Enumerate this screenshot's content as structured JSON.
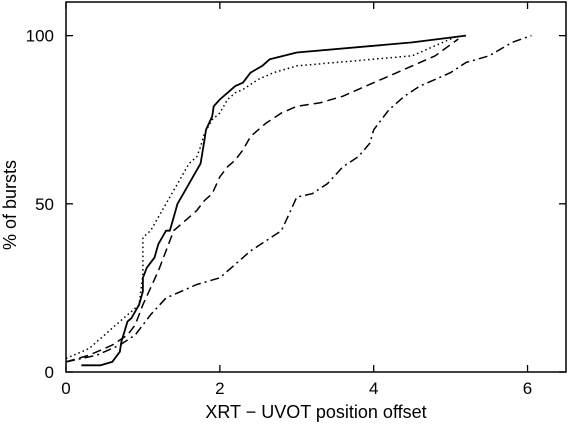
{
  "chart_data": {
    "type": "line",
    "title": "",
    "xlabel": "XRT − UVOT position offset",
    "ylabel": "% of bursts",
    "xlim": [
      0,
      6.5
    ],
    "ylim": [
      0,
      110
    ],
    "xticks": [
      0,
      2,
      4,
      6
    ],
    "xtick_labels": [
      "0",
      "2",
      "4",
      "6"
    ],
    "yticks": [
      0,
      50,
      100
    ],
    "ytick_labels": [
      "0",
      "50",
      "100"
    ],
    "grid": false,
    "legend": "none",
    "series": [
      {
        "style": "solid",
        "color": "#000000",
        "x": [
          0.2,
          0.45,
          0.6,
          0.7,
          0.72,
          0.8,
          0.85,
          0.95,
          1.0,
          1.0,
          1.05,
          1.15,
          1.2,
          1.3,
          1.35,
          1.4,
          1.45,
          1.55,
          1.65,
          1.75,
          1.8,
          1.82,
          1.9,
          1.92,
          2.0,
          2.1,
          2.2,
          2.3,
          2.4,
          2.55,
          2.65,
          3.0,
          4.5,
          5.2
        ],
        "y": [
          2,
          2,
          3,
          6,
          9,
          15,
          16,
          20,
          24,
          28,
          31,
          34,
          38,
          42,
          42,
          46,
          50,
          54,
          58,
          62,
          69,
          72,
          76,
          79,
          81,
          83,
          85,
          86,
          89,
          91,
          93,
          95,
          98,
          100
        ]
      },
      {
        "style": "dotted",
        "color": "#000000",
        "x": [
          0.0,
          0.3,
          0.5,
          0.7,
          0.85,
          0.95,
          1.0,
          1.0,
          1.1,
          1.2,
          1.3,
          1.4,
          1.5,
          1.6,
          1.7,
          1.75,
          1.8,
          1.9,
          2.0,
          2.05,
          2.1,
          2.2,
          2.3,
          2.5,
          2.7,
          3.0,
          3.5,
          4.0,
          4.5,
          5.1
        ],
        "y": [
          4,
          7,
          11,
          15,
          18,
          20,
          29,
          40,
          42,
          46,
          50,
          54,
          58,
          62,
          64,
          67,
          71,
          75,
          77,
          79,
          81,
          83,
          84,
          87,
          89,
          91,
          92,
          93,
          94,
          100
        ]
      },
      {
        "style": "dashed",
        "color": "#000000",
        "x": [
          0.0,
          0.3,
          0.6,
          0.8,
          0.9,
          1.0,
          1.1,
          1.2,
          1.3,
          1.4,
          1.5,
          1.6,
          1.7,
          1.8,
          1.9,
          2.0,
          2.1,
          2.2,
          2.3,
          2.4,
          2.6,
          2.8,
          3.0,
          3.3,
          3.6,
          4.0,
          4.4,
          4.8,
          5.1
        ],
        "y": [
          3,
          5,
          8,
          11,
          14,
          20,
          25,
          30,
          36,
          42,
          44,
          46,
          48,
          51,
          53,
          58,
          61,
          63,
          66,
          70,
          74,
          77,
          79,
          80,
          82,
          86,
          90,
          94,
          99
        ]
      },
      {
        "style": "dashdot",
        "color": "#000000",
        "x": [
          0.0,
          0.4,
          0.7,
          0.9,
          1.0,
          1.1,
          1.3,
          1.5,
          1.7,
          2.0,
          2.2,
          2.4,
          2.6,
          2.8,
          2.9,
          3.0,
          3.2,
          3.4,
          3.6,
          3.8,
          3.95,
          4.0,
          4.2,
          4.4,
          4.6,
          4.8,
          5.0,
          5.2,
          5.5,
          5.8,
          6.05
        ],
        "y": [
          3,
          5,
          8,
          11,
          14,
          17,
          22,
          24,
          26,
          28,
          32,
          36,
          39,
          42,
          47,
          52,
          53,
          56,
          61,
          64,
          68,
          72,
          78,
          82,
          85,
          87,
          89,
          92,
          94,
          98,
          100
        ]
      }
    ]
  }
}
